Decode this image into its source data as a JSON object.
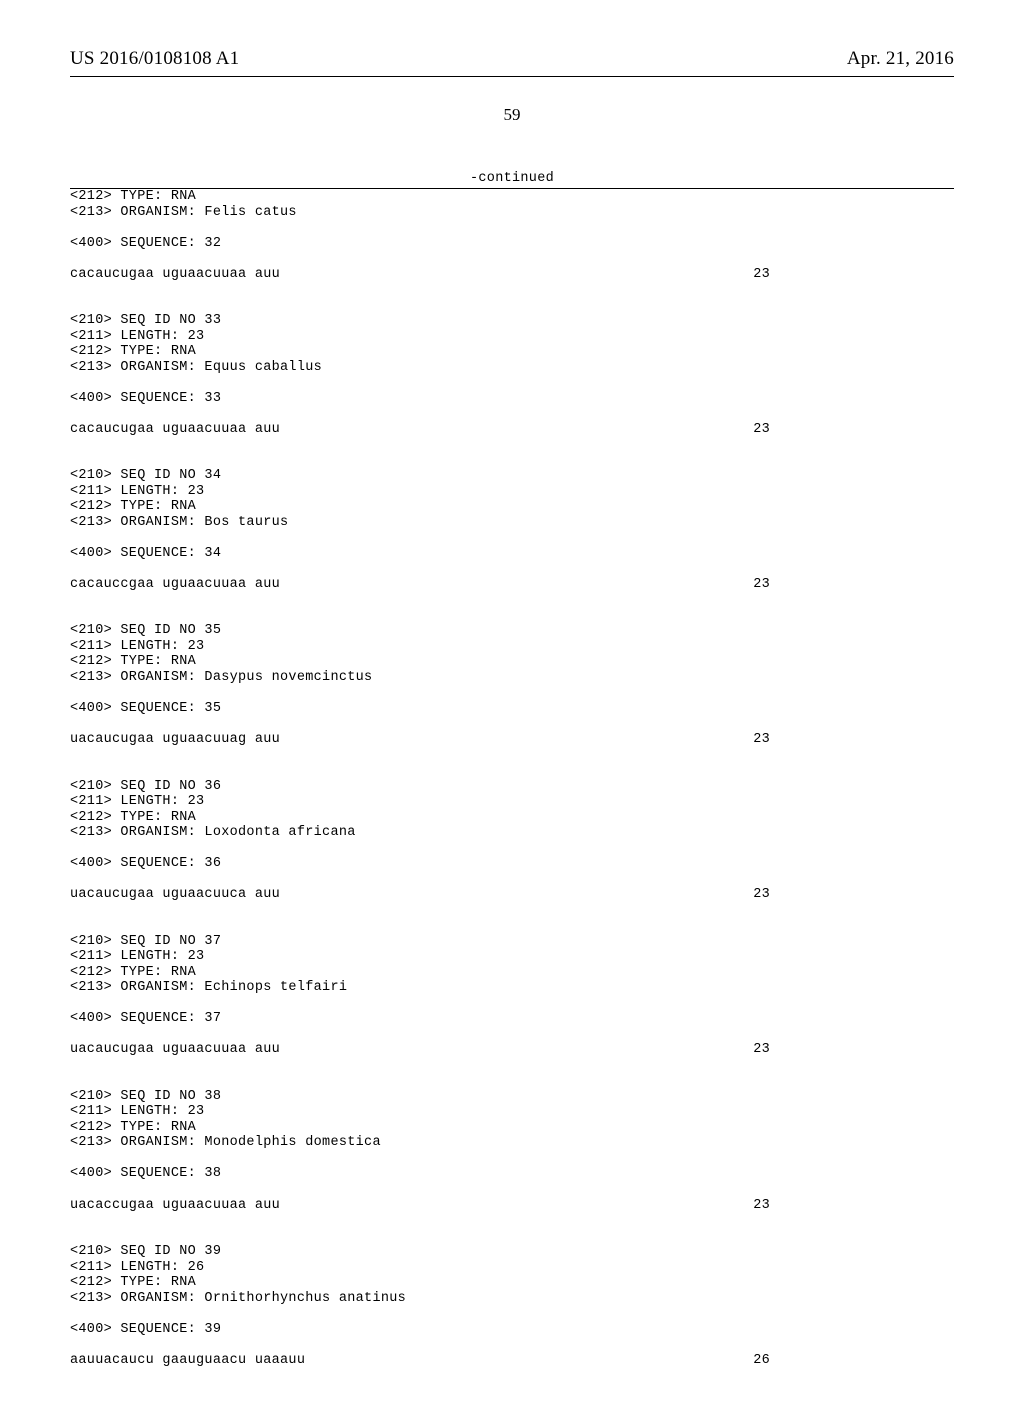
{
  "header": {
    "pubNumber": "US 2016/0108108 A1",
    "pubDate": "Apr. 21, 2016"
  },
  "pageNumber": "59",
  "continuedLabel": "-continued",
  "entries": [
    {
      "prelines": [
        "<212> TYPE: RNA",
        "<213> ORGANISM: Felis catus"
      ],
      "seqLabel": "<400> SEQUENCE: 32",
      "seqText": "cacaucugaa uguaacuuaa auu",
      "seqNum": "23"
    },
    {
      "prelines": [
        "<210> SEQ ID NO 33",
        "<211> LENGTH: 23",
        "<212> TYPE: RNA",
        "<213> ORGANISM: Equus caballus"
      ],
      "seqLabel": "<400> SEQUENCE: 33",
      "seqText": "cacaucugaa uguaacuuaa auu",
      "seqNum": "23"
    },
    {
      "prelines": [
        "<210> SEQ ID NO 34",
        "<211> LENGTH: 23",
        "<212> TYPE: RNA",
        "<213> ORGANISM: Bos taurus"
      ],
      "seqLabel": "<400> SEQUENCE: 34",
      "seqText": "cacauccgaa uguaacuuaa auu",
      "seqNum": "23"
    },
    {
      "prelines": [
        "<210> SEQ ID NO 35",
        "<211> LENGTH: 23",
        "<212> TYPE: RNA",
        "<213> ORGANISM: Dasypus novemcinctus"
      ],
      "seqLabel": "<400> SEQUENCE: 35",
      "seqText": "uacaucugaa uguaacuuag auu",
      "seqNum": "23"
    },
    {
      "prelines": [
        "<210> SEQ ID NO 36",
        "<211> LENGTH: 23",
        "<212> TYPE: RNA",
        "<213> ORGANISM: Loxodonta africana"
      ],
      "seqLabel": "<400> SEQUENCE: 36",
      "seqText": "uacaucugaa uguaacuuca auu",
      "seqNum": "23"
    },
    {
      "prelines": [
        "<210> SEQ ID NO 37",
        "<211> LENGTH: 23",
        "<212> TYPE: RNA",
        "<213> ORGANISM: Echinops telfairi"
      ],
      "seqLabel": "<400> SEQUENCE: 37",
      "seqText": "uacaucugaa uguaacuuaa auu",
      "seqNum": "23"
    },
    {
      "prelines": [
        "<210> SEQ ID NO 38",
        "<211> LENGTH: 23",
        "<212> TYPE: RNA",
        "<213> ORGANISM: Monodelphis domestica"
      ],
      "seqLabel": "<400> SEQUENCE: 38",
      "seqText": "uacaccugaa uguaacuuaa auu",
      "seqNum": "23"
    },
    {
      "prelines": [
        "<210> SEQ ID NO 39",
        "<211> LENGTH: 26",
        "<212> TYPE: RNA",
        "<213> ORGANISM: Ornithorhynchus anatinus"
      ],
      "seqLabel": "<400> SEQUENCE: 39",
      "seqText": "aauuacaucu gaauguaacu uaaauu",
      "seqNum": "26"
    }
  ]
}
